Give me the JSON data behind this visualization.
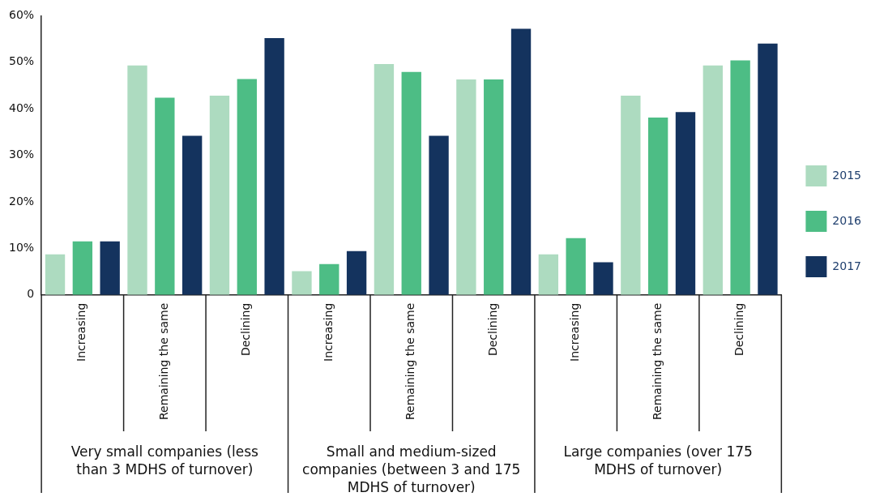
{
  "chart_data": {
    "type": "bar",
    "categories": [
      "Increasing",
      "Remaining the same",
      "Declining",
      "Increasing",
      "Remaining the same",
      "Declining",
      "Increasing",
      "Remaining the same",
      "Declining"
    ],
    "series": [
      {
        "name": "2015",
        "color": "#addbc0",
        "values": [
          8.7,
          49.3,
          42.8,
          5.1,
          49.6,
          46.3,
          8.7,
          42.8,
          49.3
        ]
      },
      {
        "name": "2016",
        "color": "#4dbd85",
        "values": [
          11.5,
          42.4,
          46.4,
          6.6,
          47.9,
          46.3,
          12.2,
          38.1,
          50.4
        ]
      },
      {
        "name": "2017",
        "color": "#14335e",
        "values": [
          11.5,
          34.2,
          55.2,
          9.4,
          34.2,
          57.2,
          7.0,
          39.3,
          54.0
        ]
      }
    ],
    "ylim": [
      0,
      60
    ],
    "yticks": [
      0,
      {
        "value": 10,
        "label": "10%"
      },
      {
        "value": 20,
        "label": "20%"
      },
      {
        "value": 30,
        "label": "30%"
      },
      {
        "value": 40,
        "label": "40%"
      },
      {
        "value": 50,
        "label": "50%"
      },
      {
        "value": 60,
        "label": "60%"
      }
    ],
    "grid": false,
    "legend": "right",
    "annotations": [
      "Very small companies (less than 3 MDHS of turnover)",
      "Small and medium-sized companies (between 3 and 175 MDHS of turnover)",
      "Large companies (over 175 MDHS of turnover)"
    ]
  }
}
